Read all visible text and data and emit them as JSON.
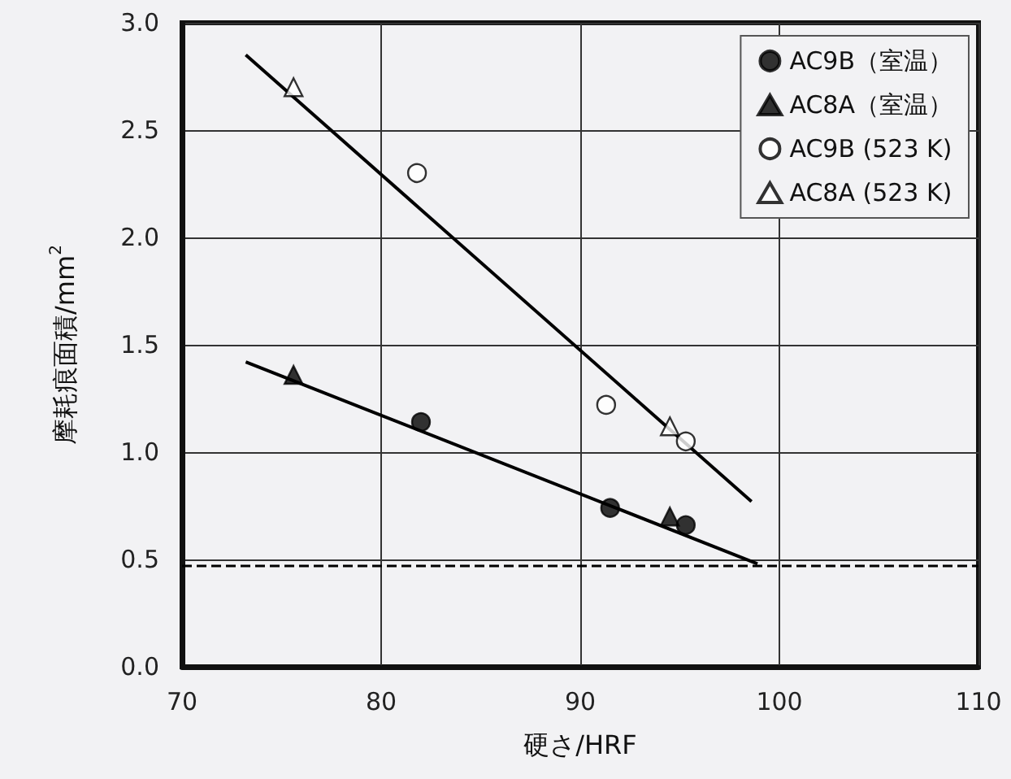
{
  "chart_data": {
    "type": "scatter",
    "xlabel": "硬さ/HRF",
    "ylabel": "摩耗痕面積/mm$^{2}$",
    "xlim": [
      70,
      110
    ],
    "xticks": [
      70,
      80,
      90,
      100,
      110
    ],
    "ylim": [
      0,
      3
    ],
    "yticks": [
      {
        "value": 0,
        "label": "0.0"
      },
      0.5,
      {
        "value": 1,
        "label": "1.0"
      },
      1.5,
      {
        "value": 2,
        "label": "2.0"
      },
      2.5,
      {
        "value": 3,
        "label": "3.0"
      }
    ],
    "grid": true,
    "legend": "top right",
    "series": [
      {
        "name": "AC9B（室温）",
        "color": "#000000",
        "marker": "circle",
        "x": [
          82,
          91.5,
          95.3
        ],
        "values": [
          1.14,
          0.74,
          0.66
        ]
      },
      {
        "name": "AC8A（室温）",
        "color": "#000000",
        "marker": "triangle",
        "x": [
          75.6,
          94.5
        ],
        "values": [
          1.36,
          0.7
        ]
      },
      {
        "name": "AC9B (523 K)",
        "color": "#ffffff",
        "marker": "circle",
        "x": [
          81.8,
          91.3,
          95.3
        ],
        "values": [
          2.3,
          1.22,
          1.05
        ]
      },
      {
        "name": "AC8A (523 K)",
        "color": "#ffffff",
        "marker": "triangle",
        "x": [
          75.6,
          94.5
        ],
        "values": [
          2.7,
          1.12
        ]
      },
      {
        "type": "line",
        "color": "#000000",
        "marker": "none",
        "x": [
          73.2,
          98.6
        ],
        "values": [
          2.85,
          0.77
        ]
      },
      {
        "type": "line",
        "color": "#000000",
        "marker": "none",
        "x": [
          73.2,
          98.9
        ],
        "values": [
          1.42,
          0.48
        ]
      }
    ],
    "ref_lines": [
      {
        "axis": "y",
        "value": 0.47,
        "line_style": "dashed",
        "color": "#000000"
      }
    ]
  }
}
